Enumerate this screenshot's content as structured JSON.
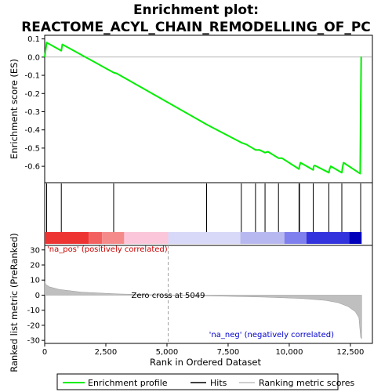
{
  "colors": {
    "enrichment": "#00ee00",
    "hits": "#000000",
    "metric_fill": "#bfbfbf",
    "zero_cross_line": "#a0a0a0",
    "pos_text": "#cc0000",
    "neg_text": "#0000cc"
  },
  "chart_data": [
    {
      "type": "line",
      "title": "Enrichment plot:",
      "subtitle": "REACTOME_ACYL_CHAIN_REMODELLING_OF_PC",
      "ylabel": "Enrichment score (ES)",
      "xlim": [
        0,
        13400
      ],
      "ylim": [
        -0.69,
        0.12
      ],
      "yticks": [
        0.1,
        0.0,
        -0.1,
        -0.2,
        -0.3,
        -0.4,
        -0.5,
        -0.6
      ],
      "ytick_labels": [
        "0.1",
        "0.0",
        "-0.1",
        "-0.2",
        "-0.3",
        "-0.4",
        "-0.5",
        "-0.6"
      ],
      "grid": false,
      "series": [
        {
          "name": "Enrichment profile",
          "x": [
            0,
            80,
            680,
            720,
            2820,
            2950,
            6620,
            8040,
            8250,
            8620,
            8780,
            9010,
            9130,
            9560,
            9700,
            10400,
            10420,
            10460,
            10980,
            11000,
            11040,
            11620,
            11650,
            11700,
            12150,
            12180,
            12220,
            12900,
            12920,
            12940,
            12960
          ],
          "y": [
            0.0,
            0.08,
            0.035,
            0.07,
            -0.085,
            -0.09,
            -0.37,
            -0.47,
            -0.48,
            -0.51,
            -0.51,
            -0.525,
            -0.52,
            -0.555,
            -0.555,
            -0.615,
            -0.6,
            -0.58,
            -0.62,
            -0.6,
            -0.595,
            -0.635,
            -0.615,
            -0.6,
            -0.635,
            -0.605,
            -0.58,
            -0.64,
            -0.335,
            0.0,
            0.0
          ]
        }
      ]
    },
    {
      "type": "hits",
      "series_name": "Hits",
      "x": [
        80,
        680,
        2820,
        6620,
        8040,
        8620,
        9010,
        9560,
        10400,
        10420,
        10980,
        11620,
        12150,
        12920
      ]
    },
    {
      "type": "area",
      "title": "",
      "xlabel": "Rank in Ordered Dataset",
      "ylabel": "Ranked list metric (PreRanked)",
      "xlim": [
        0,
        13400
      ],
      "ylim": [
        -32,
        33
      ],
      "xticks": [
        0,
        2500,
        5000,
        7500,
        10000,
        12500
      ],
      "xtick_labels": [
        "0",
        "2,500",
        "5,000",
        "7,500",
        "10,000",
        "12,500"
      ],
      "yticks": [
        30,
        20,
        10,
        0,
        -10,
        -20,
        -30
      ],
      "ytick_labels": [
        "30",
        "20",
        "10",
        "0",
        "-10",
        "-20",
        "-30"
      ],
      "series": [
        {
          "name": "Ranking metric scores",
          "x": [
            0,
            50,
            200,
            600,
            1500,
            3000,
            5049,
            7000,
            9000,
            10500,
            11500,
            12000,
            12400,
            12700,
            12850,
            12920,
            12960
          ],
          "y": [
            9,
            7,
            5.5,
            3.8,
            2.0,
            0.8,
            0.0,
            -0.6,
            -1.3,
            -2.2,
            -3.5,
            -5,
            -7.5,
            -11,
            -15,
            -28,
            -29
          ]
        }
      ],
      "annotations": {
        "pos": "'na_pos' (positively correlated)",
        "neg": "'na_neg' (negatively correlated)",
        "zero_cross": "Zero cross at 5049",
        "zero_cross_x": 5049
      }
    }
  ],
  "legend": {
    "placement": "bottom",
    "items": [
      {
        "label": "Enrichment profile"
      },
      {
        "label": "Hits"
      },
      {
        "label": "Ranking metric scores"
      }
    ]
  }
}
